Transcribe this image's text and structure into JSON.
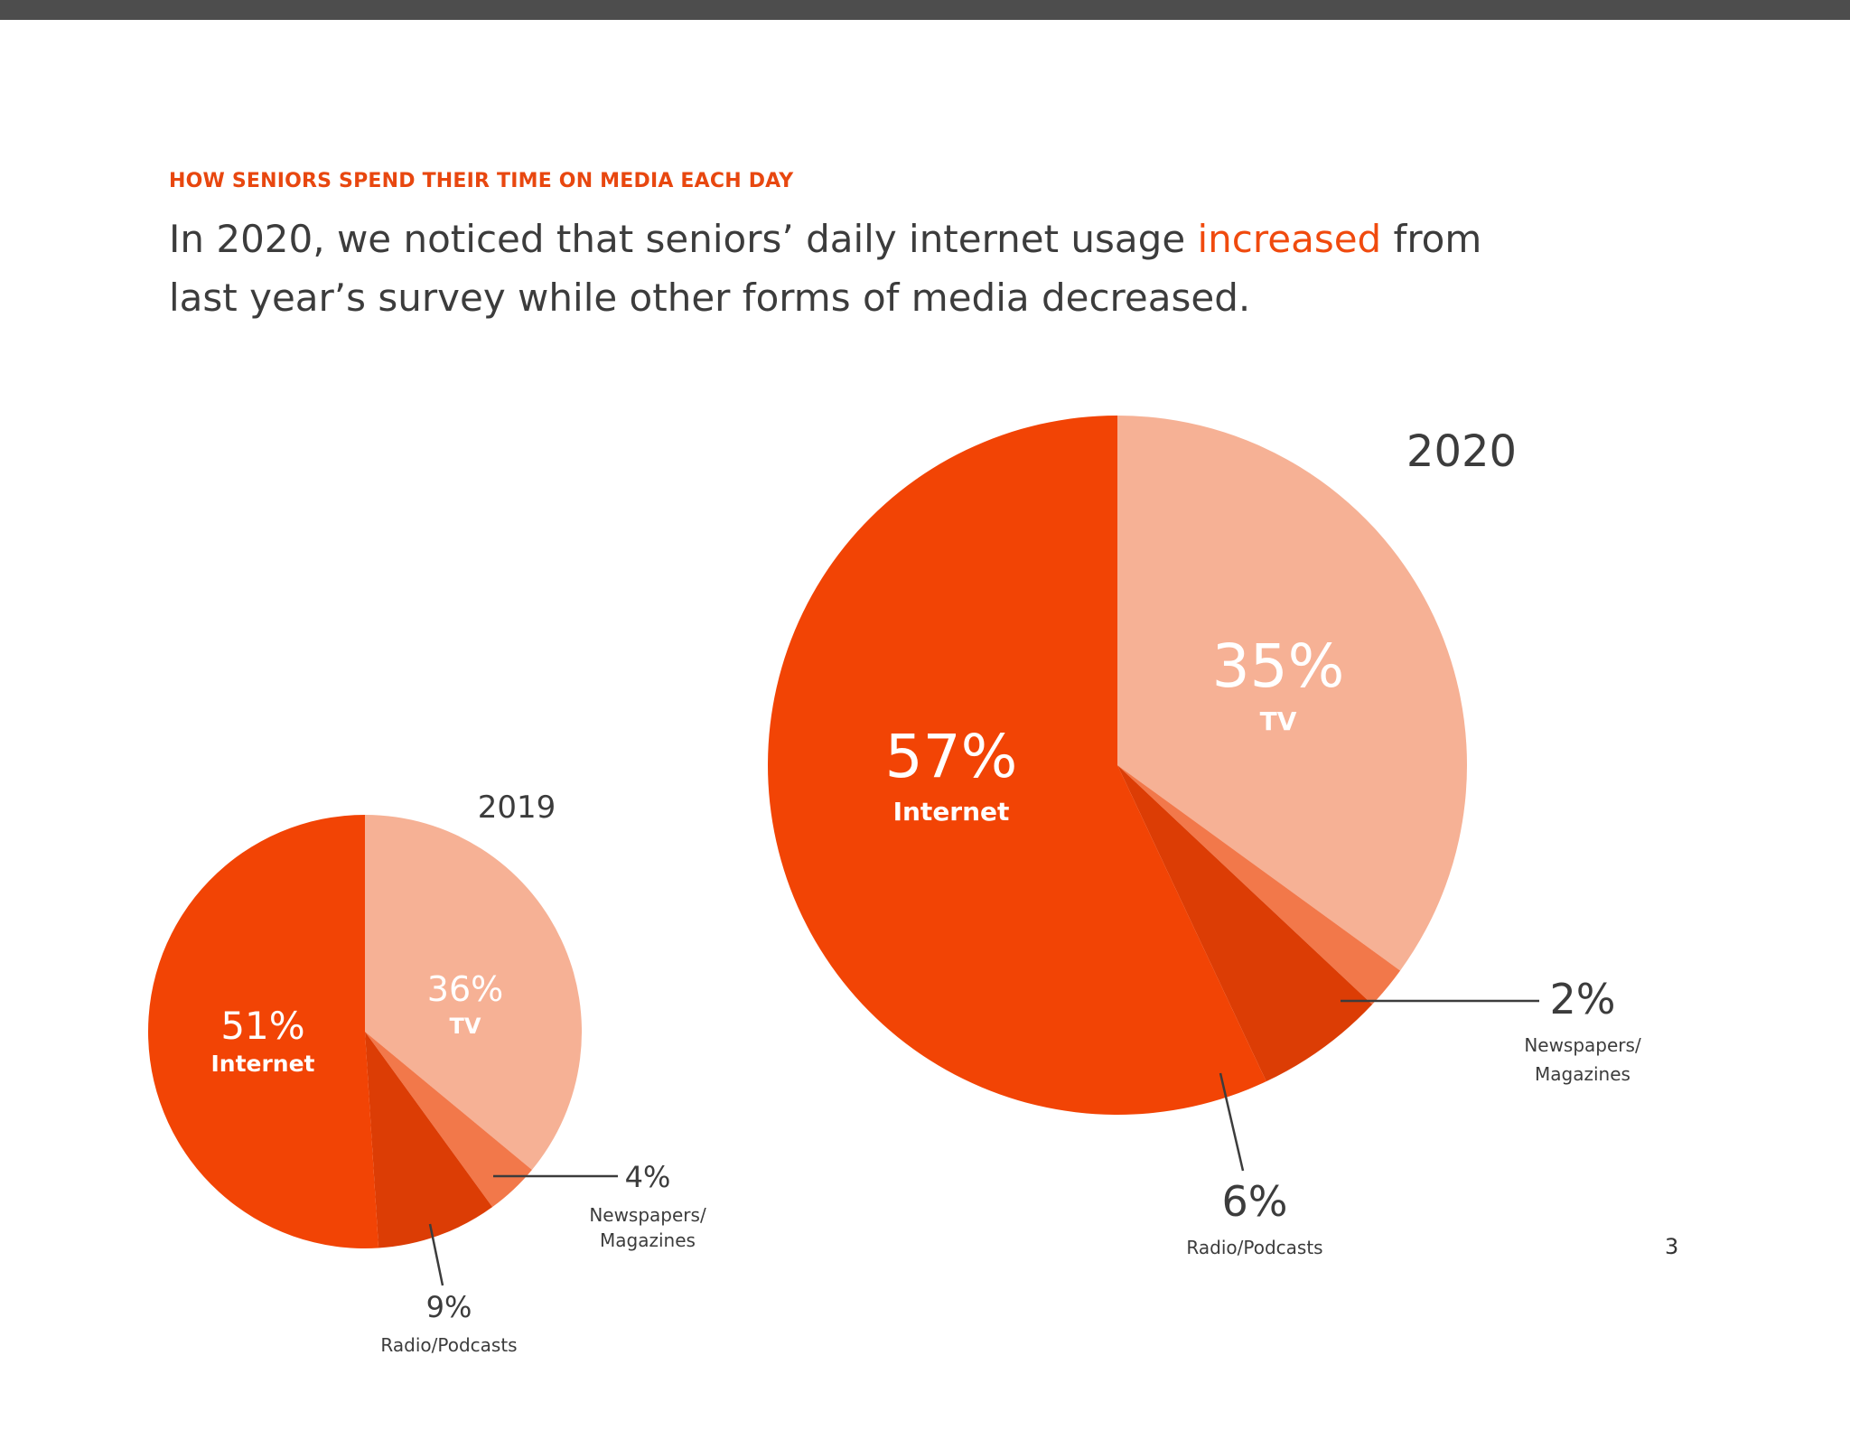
{
  "header": {
    "kicker": "HOW SENIORS SPEND THEIR TIME ON MEDIA EACH DAY",
    "headline_part1": "In 2020, we noticed that seniors’ daily internet usage ",
    "headline_highlight": "increased",
    "headline_part2": " from last year’s survey while other forms of media decreased."
  },
  "page_number": "3",
  "colors": {
    "Internet": "#f24405",
    "TV": "#f6b195",
    "Newspapers/Magazines": "#f2784a",
    "Radio/Podcasts": "#dc3d05",
    "accent": "#e8470f"
  },
  "chart_data": [
    {
      "type": "pie",
      "title": "2019",
      "categories": [
        "TV",
        "Newspapers/Magazines",
        "Radio/Podcasts",
        "Internet"
      ],
      "values": [
        36,
        4,
        9,
        51
      ],
      "labels": [
        {
          "pct": "36%",
          "name": "TV"
        },
        {
          "pct": "4%",
          "name_lines": [
            "Newspapers/",
            "Magazines"
          ]
        },
        {
          "pct": "9%",
          "name": "Radio/Podcasts"
        },
        {
          "pct": "51%",
          "name": "Internet"
        }
      ]
    },
    {
      "type": "pie",
      "title": "2020",
      "categories": [
        "TV",
        "Newspapers/Magazines",
        "Radio/Podcasts",
        "Internet"
      ],
      "values": [
        35,
        2,
        6,
        57
      ],
      "labels": [
        {
          "pct": "35%",
          "name": "TV"
        },
        {
          "pct": "2%",
          "name_lines": [
            "Newspapers/",
            "Magazines"
          ]
        },
        {
          "pct": "6%",
          "name": "Radio/Podcasts"
        },
        {
          "pct": "57%",
          "name": "Internet"
        }
      ]
    }
  ]
}
